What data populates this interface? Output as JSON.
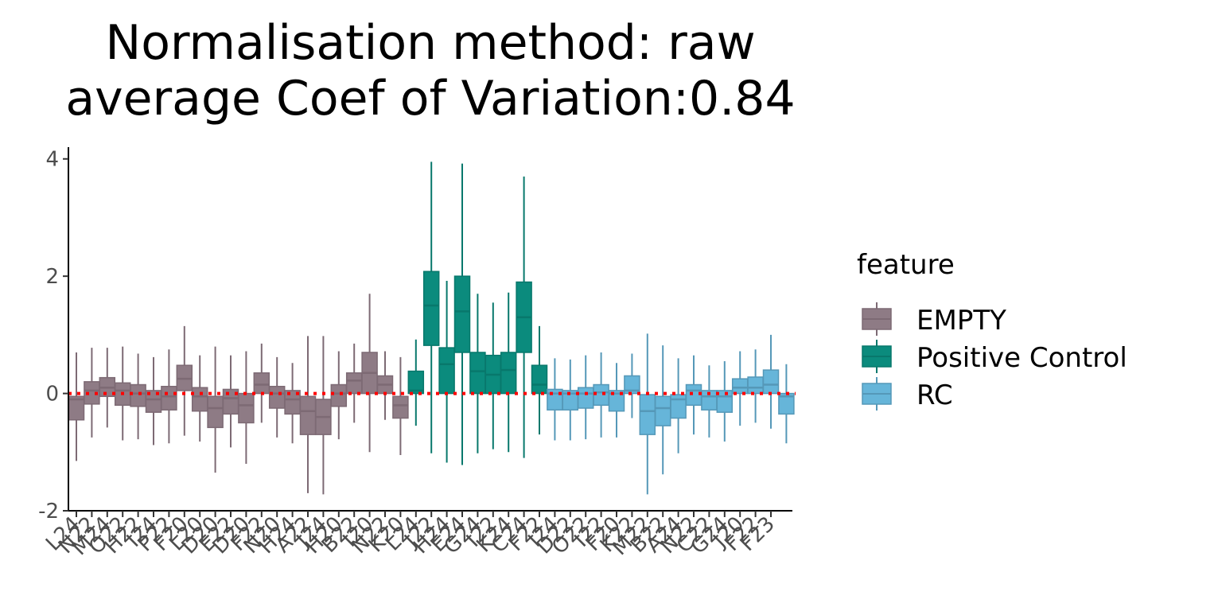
{
  "chart_data": {
    "type": "boxplot",
    "title_lines": [
      "Normalisation method: raw",
      "average Coef of Variation:0.84"
    ],
    "xlabel": "",
    "ylabel": "",
    "ylim": [
      -2,
      4.2
    ],
    "yticks": [
      -2,
      0,
      2,
      4
    ],
    "reference_line": {
      "y": 0,
      "style": "dotted",
      "color": "#ff0000"
    },
    "legend": {
      "title": "feature",
      "position": "right"
    },
    "groups": [
      {
        "name": "EMPTY",
        "fill": "#8e7b85",
        "stroke": "#7d6a74"
      },
      {
        "name": "Positive Control",
        "fill": "#0b8b7d",
        "stroke": "#08786c"
      },
      {
        "name": "RC",
        "fill": "#66b5d9",
        "stroke": "#5598b8"
      }
    ],
    "x_tick_labels": [
      "L24",
      "N22",
      "M24",
      "O22",
      "H22",
      "I24",
      "P22",
      "F20",
      "L20",
      "D20",
      "E22",
      "D20",
      "F22",
      "N20",
      "H24",
      "A22",
      "J24",
      "H20",
      "B22",
      "I20",
      "N22",
      "K20",
      "L24",
      "J22",
      "H24",
      "E24",
      "G24",
      "I22",
      "K24",
      "C24",
      "F22",
      "I24",
      "D22",
      "O22",
      "I22",
      "F20",
      "K22",
      "M22",
      "B22",
      "A24",
      "N22",
      "C22",
      "G24",
      "J20",
      "F22",
      "F23"
    ],
    "boxes": [
      {
        "group": 0,
        "low": -1.15,
        "q1": -0.45,
        "median": -0.1,
        "q3": -0.05,
        "high": 0.7
      },
      {
        "group": 0,
        "low": -0.75,
        "q1": -0.18,
        "median": 0.05,
        "q3": 0.2,
        "high": 0.78
      },
      {
        "group": 0,
        "low": -0.58,
        "q1": -0.05,
        "median": 0.1,
        "q3": 0.27,
        "high": 0.78
      },
      {
        "group": 0,
        "low": -0.8,
        "q1": -0.2,
        "median": 0.05,
        "q3": 0.18,
        "high": 0.8
      },
      {
        "group": 0,
        "low": -0.78,
        "q1": -0.22,
        "median": 0.0,
        "q3": 0.15,
        "high": 0.68
      },
      {
        "group": 0,
        "low": -0.88,
        "q1": -0.32,
        "median": -0.1,
        "q3": 0.05,
        "high": 0.62
      },
      {
        "group": 0,
        "low": -0.85,
        "q1": -0.28,
        "median": -0.05,
        "q3": 0.12,
        "high": 0.75
      },
      {
        "group": 0,
        "low": -0.72,
        "q1": 0.05,
        "median": 0.25,
        "q3": 0.48,
        "high": 1.15
      },
      {
        "group": 0,
        "low": -0.82,
        "q1": -0.3,
        "median": -0.05,
        "q3": 0.1,
        "high": 0.65
      },
      {
        "group": 0,
        "low": -1.35,
        "q1": -0.58,
        "median": -0.25,
        "q3": -0.05,
        "high": 0.8
      },
      {
        "group": 0,
        "low": -0.92,
        "q1": -0.35,
        "median": -0.08,
        "q3": 0.07,
        "high": 0.65
      },
      {
        "group": 0,
        "low": -1.2,
        "q1": -0.5,
        "median": -0.2,
        "q3": 0.0,
        "high": 0.72
      },
      {
        "group": 0,
        "low": -0.5,
        "q1": 0.0,
        "median": 0.15,
        "q3": 0.35,
        "high": 0.85
      },
      {
        "group": 0,
        "low": -0.75,
        "q1": -0.25,
        "median": 0.0,
        "q3": 0.12,
        "high": 0.62
      },
      {
        "group": 0,
        "low": -0.85,
        "q1": -0.35,
        "median": -0.1,
        "q3": 0.05,
        "high": 0.52
      },
      {
        "group": 0,
        "low": -1.7,
        "q1": -0.7,
        "median": -0.3,
        "q3": -0.05,
        "high": 0.98
      },
      {
        "group": 0,
        "low": -1.72,
        "q1": -0.7,
        "median": -0.4,
        "q3": -0.1,
        "high": 0.98
      },
      {
        "group": 0,
        "low": -0.78,
        "q1": -0.22,
        "median": 0.0,
        "q3": 0.15,
        "high": 0.72
      },
      {
        "group": 0,
        "low": -0.5,
        "q1": 0.0,
        "median": 0.22,
        "q3": 0.35,
        "high": 0.85
      },
      {
        "group": 0,
        "low": -1.0,
        "q1": 0.0,
        "median": 0.35,
        "q3": 0.7,
        "high": 1.7
      },
      {
        "group": 0,
        "low": -0.45,
        "q1": 0.0,
        "median": 0.15,
        "q3": 0.3,
        "high": 0.72
      },
      {
        "group": 0,
        "low": -1.05,
        "q1": -0.42,
        "median": -0.2,
        "q3": -0.05,
        "high": 0.62
      },
      {
        "group": 1,
        "low": -0.55,
        "q1": 0.0,
        "median": 0.05,
        "q3": 0.38,
        "high": 0.92
      },
      {
        "group": 1,
        "low": -1.02,
        "q1": 0.82,
        "median": 1.5,
        "q3": 2.08,
        "high": 3.95
      },
      {
        "group": 1,
        "low": -1.18,
        "q1": 0.0,
        "median": 0.5,
        "q3": 0.78,
        "high": 1.92
      },
      {
        "group": 1,
        "low": -1.22,
        "q1": 0.7,
        "median": 1.4,
        "q3": 2.0,
        "high": 3.92
      },
      {
        "group": 1,
        "low": -1.02,
        "q1": 0.0,
        "median": 0.38,
        "q3": 0.7,
        "high": 1.7
      },
      {
        "group": 1,
        "low": -0.95,
        "q1": 0.0,
        "median": 0.32,
        "q3": 0.65,
        "high": 1.55
      },
      {
        "group": 1,
        "low": -1.0,
        "q1": 0.0,
        "median": 0.4,
        "q3": 0.7,
        "high": 1.72
      },
      {
        "group": 1,
        "low": -1.1,
        "q1": 0.7,
        "median": 1.3,
        "q3": 1.9,
        "high": 3.7
      },
      {
        "group": 1,
        "low": -0.7,
        "q1": 0.0,
        "median": 0.15,
        "q3": 0.48,
        "high": 1.15
      },
      {
        "group": 2,
        "low": -0.8,
        "q1": -0.28,
        "median": 0.0,
        "q3": 0.07,
        "high": 0.6
      },
      {
        "group": 2,
        "low": -0.8,
        "q1": -0.28,
        "median": 0.0,
        "q3": 0.05,
        "high": 0.58
      },
      {
        "group": 2,
        "low": -0.78,
        "q1": -0.25,
        "median": 0.0,
        "q3": 0.1,
        "high": 0.65
      },
      {
        "group": 2,
        "low": -0.75,
        "q1": -0.2,
        "median": 0.02,
        "q3": 0.15,
        "high": 0.7
      },
      {
        "group": 2,
        "low": -0.75,
        "q1": -0.3,
        "median": 0.0,
        "q3": 0.05,
        "high": 0.52
      },
      {
        "group": 2,
        "low": -0.42,
        "q1": 0.0,
        "median": 0.05,
        "q3": 0.3,
        "high": 0.68
      },
      {
        "group": 2,
        "low": -1.72,
        "q1": -0.7,
        "median": -0.3,
        "q3": -0.02,
        "high": 1.02
      },
      {
        "group": 2,
        "low": -1.38,
        "q1": -0.55,
        "median": -0.25,
        "q3": -0.05,
        "high": 0.82
      },
      {
        "group": 2,
        "low": -1.02,
        "q1": -0.42,
        "median": -0.1,
        "q3": -0.02,
        "high": 0.6
      },
      {
        "group": 2,
        "low": -0.7,
        "q1": -0.2,
        "median": 0.05,
        "q3": 0.15,
        "high": 0.65
      },
      {
        "group": 2,
        "low": -0.75,
        "q1": -0.28,
        "median": -0.05,
        "q3": 0.05,
        "high": 0.48
      },
      {
        "group": 2,
        "low": -0.82,
        "q1": -0.32,
        "median": -0.05,
        "q3": 0.05,
        "high": 0.55
      },
      {
        "group": 2,
        "low": -0.55,
        "q1": 0.0,
        "median": 0.1,
        "q3": 0.25,
        "high": 0.72
      },
      {
        "group": 2,
        "low": -0.5,
        "q1": 0.0,
        "median": 0.1,
        "q3": 0.28,
        "high": 0.75
      },
      {
        "group": 2,
        "low": -0.6,
        "q1": 0.0,
        "median": 0.15,
        "q3": 0.4,
        "high": 1.0
      },
      {
        "group": 2,
        "low": -0.85,
        "q1": -0.35,
        "median": -0.05,
        "q3": 0.0,
        "high": 0.5
      }
    ]
  }
}
